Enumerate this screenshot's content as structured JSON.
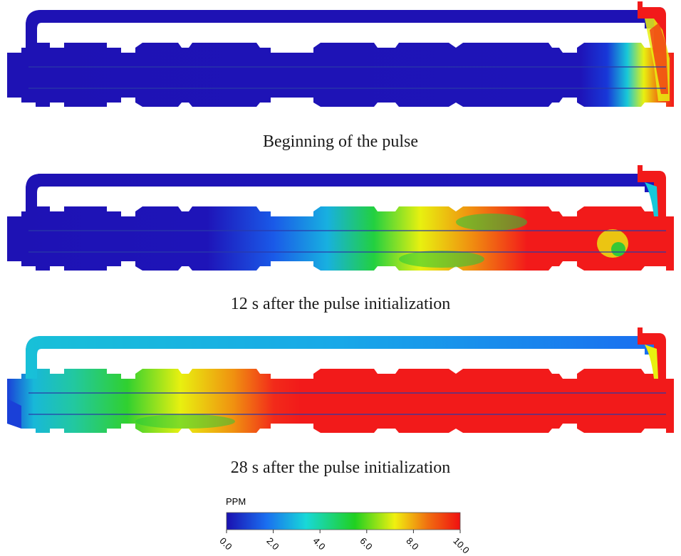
{
  "panels": [
    {
      "caption": "Beginning of the pulse"
    },
    {
      "caption": "12 s after the pulse initialization"
    },
    {
      "caption": "28 s after the pulse initialization"
    }
  ],
  "legend": {
    "title": "PPM",
    "ticks": [
      "0.0",
      "2.0",
      "4.0",
      "6.0",
      "8.0",
      "10.0"
    ],
    "colors": [
      "#1a10b0",
      "#1a6ef0",
      "#18d8d8",
      "#20d020",
      "#f0f010",
      "#f07010",
      "#f01010"
    ]
  },
  "colors": {
    "low": "#1e12b4",
    "mid": "#22c83a",
    "high": "#f21a1a",
    "tube": "#2a3aa8"
  }
}
